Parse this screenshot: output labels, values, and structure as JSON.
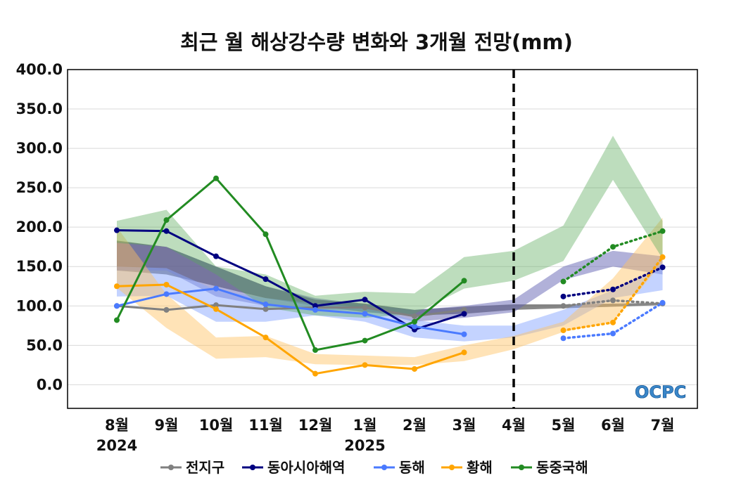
{
  "chart_data": {
    "type": "line",
    "title": "최근 월 해상강수량 변화와 3개월 전망(mm)",
    "categories": [
      "8월",
      "9월",
      "10월",
      "11월",
      "12월",
      "1월",
      "2월",
      "3월",
      "4월",
      "5월",
      "6월",
      "7월"
    ],
    "year_labels": [
      {
        "category": "8월",
        "label": "2024"
      },
      {
        "category": "1월",
        "label": "2025"
      }
    ],
    "ylim": [
      -30,
      400
    ],
    "yticks": [
      "400.0",
      "350.0",
      "300.0",
      "250.0",
      "200.0",
      "150.0",
      "100.0",
      "50.0",
      "0.0"
    ],
    "ytick_values": [
      400,
      350,
      300,
      250,
      200,
      150,
      100,
      50,
      0
    ],
    "forecast_divider_after": "4월",
    "grid": true,
    "legend_position": "bottom",
    "series": [
      {
        "name": "전지구",
        "color": "#808080",
        "band_color": "#555555",
        "band_opacity": 0.7,
        "observed": [
          100,
          95,
          101,
          96,
          98,
          98,
          87,
          95,
          null,
          null,
          null,
          null
        ],
        "forecast": [
          null,
          null,
          null,
          null,
          null,
          null,
          null,
          null,
          null,
          100,
          107,
          103
        ],
        "band_low": [
          145,
          140,
          125,
          110,
          100,
          92,
          88,
          90,
          95,
          97,
          99,
          101
        ],
        "band_high": [
          183,
          175,
          150,
          125,
          108,
          103,
          95,
          99,
          102,
          102,
          103,
          104
        ]
      },
      {
        "name": "동아시아해역",
        "color": "#000080",
        "band_color": "#6464b4",
        "band_opacity": 0.5,
        "observed": [
          196,
          195,
          163,
          134,
          100,
          108,
          70,
          90,
          null,
          null,
          null,
          null
        ],
        "forecast": [
          null,
          null,
          null,
          null,
          null,
          null,
          null,
          null,
          null,
          112,
          121,
          149
        ],
        "band_low": [
          145,
          145,
          112,
          100,
          95,
          95,
          80,
          85,
          92,
          133,
          150,
          140
        ],
        "band_high": [
          182,
          175,
          150,
          125,
          110,
          102,
          95,
          100,
          108,
          150,
          170,
          163
        ]
      },
      {
        "name": "동해",
        "color": "#4a7aff",
        "band_color": "#8aa8ff",
        "band_opacity": 0.5,
        "observed": [
          100,
          115,
          122,
          102,
          95,
          90,
          74,
          64,
          null,
          null,
          null,
          null
        ],
        "forecast": [
          null,
          null,
          null,
          null,
          null,
          null,
          null,
          null,
          null,
          59,
          65,
          104
        ],
        "band_low": [
          112,
          113,
          80,
          80,
          88,
          80,
          60,
          55,
          60,
          75,
          110,
          120
        ],
        "band_high": [
          150,
          148,
          120,
          110,
          103,
          98,
          82,
          75,
          75,
          95,
          120,
          150
        ]
      },
      {
        "name": "황해",
        "color": "#ffa500",
        "band_color": "#ffc060",
        "band_opacity": 0.45,
        "observed": [
          125,
          127,
          96,
          60,
          14,
          25,
          20,
          41,
          null,
          null,
          null,
          null
        ],
        "forecast": [
          null,
          null,
          null,
          null,
          null,
          null,
          null,
          null,
          null,
          69,
          79,
          162
        ],
        "band_low": [
          123,
          72,
          33,
          35,
          26,
          25,
          25,
          30,
          45,
          67,
          80,
          155
        ],
        "band_high": [
          200,
          115,
          60,
          62,
          39,
          37,
          35,
          50,
          62,
          80,
          135,
          212
        ]
      },
      {
        "name": "동중국해",
        "color": "#228b22",
        "band_color": "#5aaa5a",
        "band_opacity": 0.4,
        "observed": [
          82,
          209,
          262,
          191,
          44,
          56,
          80,
          132,
          null,
          null,
          null,
          null
        ],
        "forecast": [
          null,
          null,
          null,
          null,
          null,
          null,
          null,
          null,
          null,
          131,
          175,
          195
        ],
        "band_low": [
          180,
          175,
          140,
          98,
          88,
          85,
          90,
          122,
          132,
          157,
          260,
          160
        ],
        "band_high": [
          208,
          222,
          150,
          140,
          113,
          118,
          116,
          162,
          170,
          202,
          316,
          208
        ]
      }
    ]
  },
  "logo": {
    "text": "OCPC"
  }
}
